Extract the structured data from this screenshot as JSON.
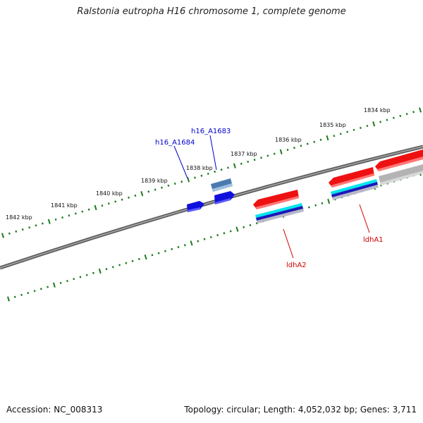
{
  "title": "Ralstonia eutropha H16 chromosome 1, complete genome",
  "footer": {
    "accession": "Accession: NC_008313",
    "summary": "Topology: circular; Length: 4,052,032 bp; Genes: 3,711"
  },
  "ticks": [
    "1834 kbp",
    "1835 kbp",
    "1836 kbp",
    "1837 kbp",
    "1838 kbp",
    "1839 kbp",
    "1840 kbp",
    "1841 kbp",
    "1842 kbp"
  ],
  "genes": [
    {
      "label": "h16_A1683",
      "color": "#0000cc",
      "strand": "forward"
    },
    {
      "label": "h16_A1684",
      "color": "#0000cc",
      "strand": "forward"
    },
    {
      "label": "ldhA1",
      "color": "#cc0000",
      "strand": "reverse"
    },
    {
      "label": "ldhA2",
      "color": "#cc0000",
      "strand": "reverse"
    }
  ],
  "colors": {
    "backbone": "#7a7a7a",
    "tick": "#1a7a1a",
    "gene_blue": "#1010dd",
    "gene_steel": "#4a7ab0",
    "gene_red": "#ee1111",
    "feature_cyan": "#00e5ee",
    "feature_navy": "#1a1ab8",
    "feature_gray": "#b8b8c8"
  }
}
